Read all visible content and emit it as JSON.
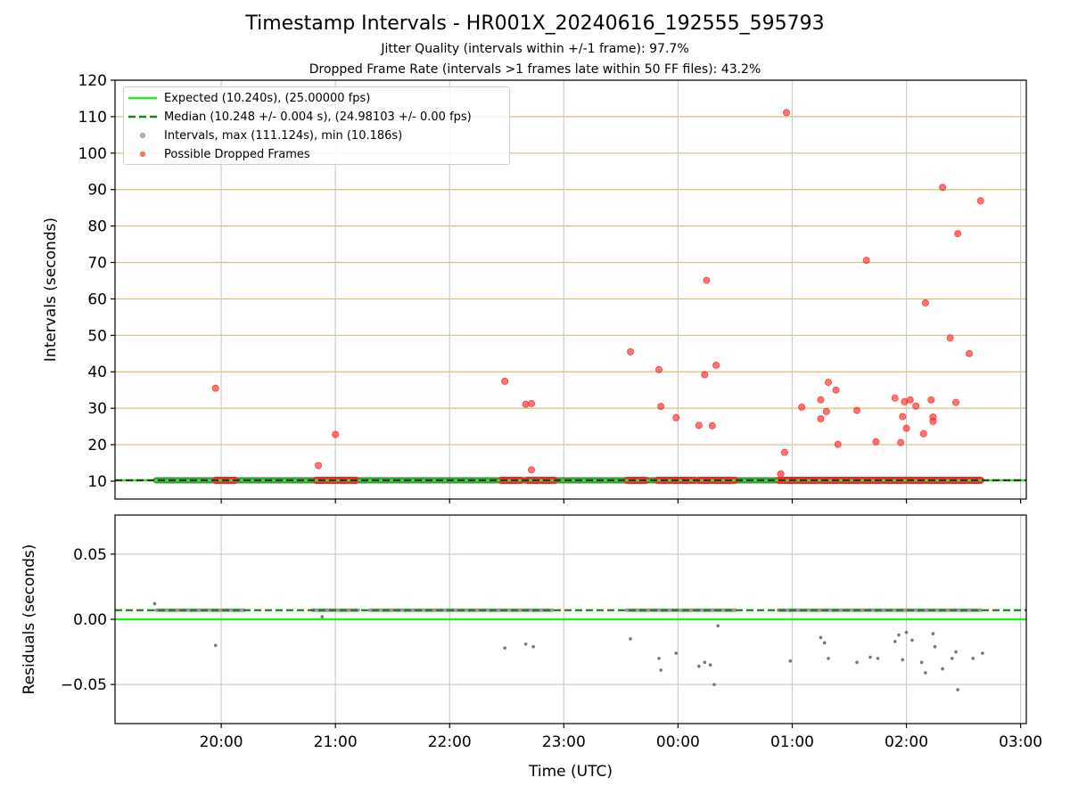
{
  "figure": {
    "title": "Timestamp Intervals - HR001X_20240616_192555_595793",
    "subtitle_1": "Jitter Quality (intervals within +/-1 frame): 97.7%",
    "subtitle_2": "Dropped Frame Rate (intervals >1 frames late within 50 FF files): 43.2%"
  },
  "chart_data": [
    {
      "type": "scatter",
      "panel": "top",
      "ylabel": "Intervals (seconds)",
      "ylim": [
        5.1,
        120
      ],
      "yticks": [
        10,
        20,
        30,
        40,
        50,
        60,
        70,
        80,
        90,
        100,
        110,
        120
      ],
      "xlim_hours": [
        19.07,
        27.05
      ],
      "x_tick_hours": [
        20,
        21,
        22,
        23,
        24,
        25,
        26,
        27
      ],
      "grid": "x-major gray, y-major tan",
      "legend": {
        "placement": "top-left",
        "entries": [
          {
            "label": "Expected (10.240s), (25.00000 fps)",
            "style": "solid-line",
            "color": "#22ee22"
          },
          {
            "label": "Median (10.248 +/- 0.004 s), (24.98103 +/- 0.00 fps)",
            "style": "dashed-line",
            "color": "#118811"
          },
          {
            "label": "Intervals, max (111.124s), min (10.186s)",
            "style": "marker",
            "color": "#999999"
          },
          {
            "label": "Possible Dropped Frames",
            "style": "marker",
            "color": "#ff4040"
          }
        ]
      },
      "expected_line": 10.24,
      "median_line": 10.248,
      "intervals_span_hours": [
        19.43,
        26.65
      ],
      "dropped_frames_baseline_segments": [
        [
          19.95,
          20.12
        ],
        [
          20.83,
          21.18
        ],
        [
          22.45,
          22.63
        ],
        [
          22.68,
          22.92
        ],
        [
          23.55,
          23.72
        ],
        [
          23.82,
          24.15
        ],
        [
          24.18,
          24.5
        ],
        [
          24.88,
          26.65
        ]
      ],
      "dropped_frames_points": [
        {
          "x": "19:57",
          "y": 35.5
        },
        {
          "x": "20:51",
          "y": 14.3
        },
        {
          "x": "21:00",
          "y": 22.8
        },
        {
          "x": "22:29",
          "y": 37.4
        },
        {
          "x": "22:40",
          "y": 31.1
        },
        {
          "x": "22:43",
          "y": 31.3
        },
        {
          "x": "22:43",
          "y": 13.1
        },
        {
          "x": "23:35",
          "y": 45.5
        },
        {
          "x": "23:50",
          "y": 40.6
        },
        {
          "x": "23:51",
          "y": 30.5
        },
        {
          "x": "23:59",
          "y": 27.4
        },
        {
          "x": "00:11",
          "y": 25.3
        },
        {
          "x": "00:14",
          "y": 39.2
        },
        {
          "x": "00:15",
          "y": 65.1
        },
        {
          "x": "00:18",
          "y": 25.2
        },
        {
          "x": "00:20",
          "y": 41.8
        },
        {
          "x": "00:54",
          "y": 12.0
        },
        {
          "x": "00:56",
          "y": 17.9
        },
        {
          "x": "00:57",
          "y": 111.1
        },
        {
          "x": "01:05",
          "y": 30.3
        },
        {
          "x": "01:15",
          "y": 32.3
        },
        {
          "x": "01:15",
          "y": 27.1
        },
        {
          "x": "01:18",
          "y": 29.1
        },
        {
          "x": "01:19",
          "y": 37.1
        },
        {
          "x": "01:23",
          "y": 35.0
        },
        {
          "x": "01:24",
          "y": 20.1
        },
        {
          "x": "01:34",
          "y": 29.4
        },
        {
          "x": "01:39",
          "y": 70.6
        },
        {
          "x": "01:44",
          "y": 20.8
        },
        {
          "x": "01:54",
          "y": 32.8
        },
        {
          "x": "01:57",
          "y": 20.6
        },
        {
          "x": "01:58",
          "y": 27.7
        },
        {
          "x": "01:59",
          "y": 31.8
        },
        {
          "x": "02:00",
          "y": 24.5
        },
        {
          "x": "02:02",
          "y": 32.3
        },
        {
          "x": "02:05",
          "y": 30.6
        },
        {
          "x": "02:09",
          "y": 23.0
        },
        {
          "x": "02:10",
          "y": 58.9
        },
        {
          "x": "02:13",
          "y": 32.3
        },
        {
          "x": "02:14",
          "y": 26.4
        },
        {
          "x": "02:14",
          "y": 27.6
        },
        {
          "x": "02:19",
          "y": 90.6
        },
        {
          "x": "02:23",
          "y": 49.3
        },
        {
          "x": "02:26",
          "y": 31.6
        },
        {
          "x": "02:27",
          "y": 77.9
        },
        {
          "x": "02:33",
          "y": 45.0
        },
        {
          "x": "02:39",
          "y": 86.9
        }
      ]
    },
    {
      "type": "scatter",
      "panel": "bottom",
      "ylabel": "Residuals (seconds)",
      "xlabel": "Time (UTC)",
      "ylim": [
        -0.08,
        0.08
      ],
      "yticks": [
        0.05,
        0.0,
        -0.05
      ],
      "ytick_labels": [
        "0.05",
        "0.00",
        "−0.05"
      ],
      "xlim_hours": [
        19.07,
        27.05
      ],
      "x_tick_hours": [
        20,
        21,
        22,
        23,
        24,
        25,
        26,
        27
      ],
      "x_tick_labels": [
        "20:00",
        "21:00",
        "22:00",
        "23:00",
        "00:00",
        "01:00",
        "02:00",
        "03:00"
      ],
      "grid": "major gray",
      "expected_residual": 0.0,
      "median_residual": 0.007,
      "residual_band_segments": [
        [
          19.43,
          20.2
        ],
        [
          20.8,
          21.2
        ],
        [
          21.3,
          22.9
        ],
        [
          23.55,
          24.5
        ],
        [
          24.88,
          26.65
        ]
      ],
      "residual_outliers": [
        {
          "x": "19:25",
          "y": 0.012
        },
        {
          "x": "19:57",
          "y": -0.02
        },
        {
          "x": "20:53",
          "y": 0.002
        },
        {
          "x": "22:29",
          "y": -0.022
        },
        {
          "x": "22:40",
          "y": -0.019
        },
        {
          "x": "22:44",
          "y": -0.021
        },
        {
          "x": "23:35",
          "y": -0.015
        },
        {
          "x": "23:50",
          "y": -0.03
        },
        {
          "x": "23:51",
          "y": -0.039
        },
        {
          "x": "23:59",
          "y": -0.026
        },
        {
          "x": "00:11",
          "y": -0.036
        },
        {
          "x": "00:14",
          "y": -0.033
        },
        {
          "x": "00:17",
          "y": -0.035
        },
        {
          "x": "00:19",
          "y": -0.05
        },
        {
          "x": "00:21",
          "y": -0.005
        },
        {
          "x": "00:59",
          "y": -0.032
        },
        {
          "x": "01:15",
          "y": -0.014
        },
        {
          "x": "01:17",
          "y": -0.018
        },
        {
          "x": "01:19",
          "y": -0.03
        },
        {
          "x": "01:34",
          "y": -0.033
        },
        {
          "x": "01:41",
          "y": -0.029
        },
        {
          "x": "01:45",
          "y": -0.03
        },
        {
          "x": "01:54",
          "y": -0.017
        },
        {
          "x": "01:56",
          "y": -0.012
        },
        {
          "x": "01:58",
          "y": -0.031
        },
        {
          "x": "02:00",
          "y": -0.01
        },
        {
          "x": "02:03",
          "y": -0.016
        },
        {
          "x": "02:08",
          "y": -0.033
        },
        {
          "x": "02:10",
          "y": -0.041
        },
        {
          "x": "02:14",
          "y": -0.011
        },
        {
          "x": "02:15",
          "y": -0.021
        },
        {
          "x": "02:19",
          "y": -0.038
        },
        {
          "x": "02:24",
          "y": -0.03
        },
        {
          "x": "02:26",
          "y": -0.025
        },
        {
          "x": "02:27",
          "y": -0.054
        },
        {
          "x": "02:35",
          "y": -0.03
        },
        {
          "x": "02:40",
          "y": -0.026
        }
      ]
    }
  ]
}
